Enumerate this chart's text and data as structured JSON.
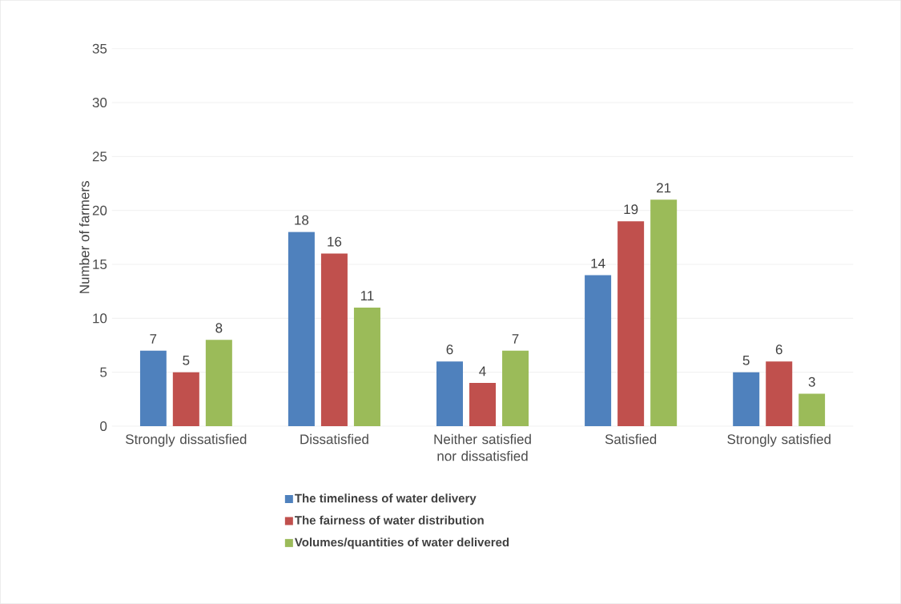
{
  "chart_data": {
    "type": "bar",
    "categories": [
      "Strongly dissatisfied",
      "Dissatisfied",
      "Neither satisfied nor dissatisfied",
      "Satisfied",
      "Strongly satisfied"
    ],
    "series": [
      {
        "name": "The timeliness of water delivery",
        "color": "#4f81bd",
        "values": [
          7,
          18,
          6,
          14,
          5
        ]
      },
      {
        "name": "The fairness of water distribution",
        "color": "#c0504d",
        "values": [
          5,
          16,
          4,
          19,
          6
        ]
      },
      {
        "name": "Volumes/quantities of water delivered",
        "color": "#9bbb59",
        "values": [
          8,
          11,
          7,
          21,
          3
        ]
      }
    ],
    "ylabel": "Number of farmers",
    "ylim": [
      0,
      35
    ],
    "yticks": [
      0,
      5,
      10,
      15,
      20,
      25,
      30,
      35
    ],
    "grid": "y",
    "legend": "bottom",
    "data_labels": true
  }
}
